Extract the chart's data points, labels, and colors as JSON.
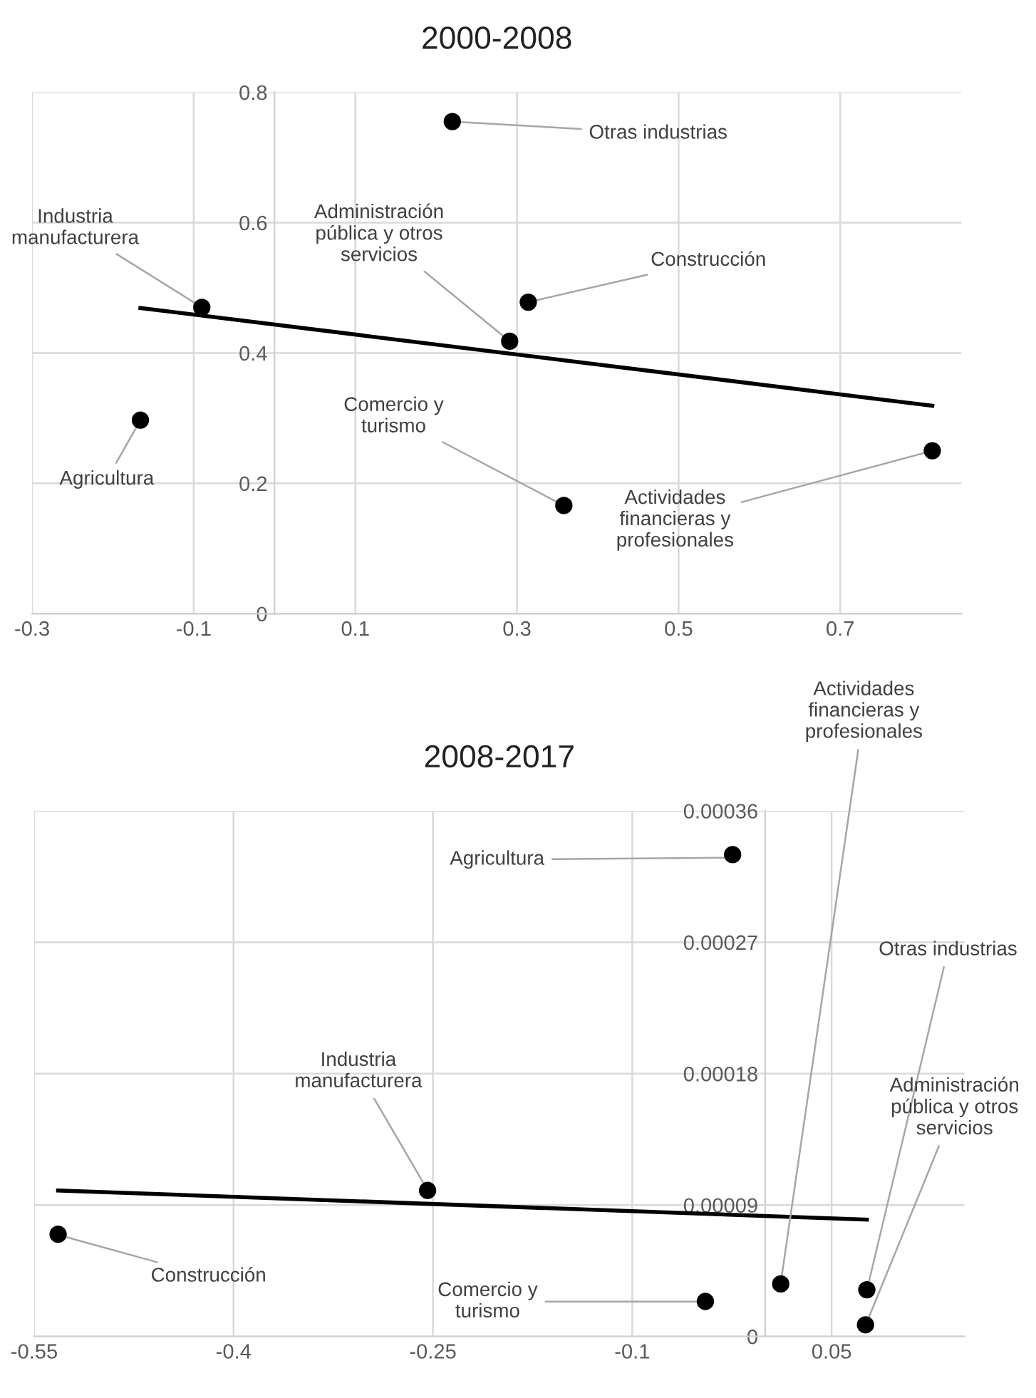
{
  "chart_data": [
    {
      "type": "scatter",
      "title": "2000-2008",
      "series": [
        {
          "color": "#000000",
          "marker": "circle",
          "x": [
            0.22,
            -0.09,
            0.314,
            0.291,
            -0.166,
            0.358,
            0.814
          ],
          "values": [
            0.755,
            0.47,
            0.478,
            0.418,
            0.297,
            0.166,
            0.25
          ]
        },
        {
          "type": "line",
          "marker": "none",
          "line_style": "solid",
          "color": "#000000",
          "x": [
            -0.166,
            0.814
          ],
          "values": [
            0.469,
            0.319
          ]
        }
      ],
      "xlim": [
        -0.3,
        0.85
      ],
      "xticks": [
        -0.3,
        -0.1,
        0.1,
        0.3,
        0.5,
        0.7
      ],
      "ylim": [
        0,
        0.8
      ],
      "yticks": [
        0,
        0.2,
        0.4,
        0.6,
        0.8
      ],
      "grid": true,
      "annotations": [
        {
          "text": "Otras industrias",
          "x": 0.22,
          "y": 0.755
        },
        {
          "text": "Industria\nmanufacturera",
          "x": -0.09,
          "y": 0.47
        },
        {
          "text": "Construcción",
          "x": 0.314,
          "y": 0.478
        },
        {
          "text": "Administración\npública y otros\nservicios",
          "x": 0.291,
          "y": 0.418
        },
        {
          "text": "Agricultura",
          "x": -0.166,
          "y": 0.297
        },
        {
          "text": "Comercio y\nturismo",
          "x": 0.358,
          "y": 0.166
        },
        {
          "text": "Actividades\nfinancieras y\nprofesionales",
          "x": 0.814,
          "y": 0.25
        }
      ]
    },
    {
      "type": "scatter",
      "title": "2008-2017",
      "series": [
        {
          "color": "#000000",
          "marker": "circle",
          "x": [
            -0.0245,
            0.0117,
            0.0765,
            0.0755,
            -0.045,
            -0.254,
            -0.532
          ],
          "values": [
            0.00033,
            3.6e-05,
            3.2e-05,
            8e-06,
            2.4e-05,
            0.0001,
            7e-05
          ]
        },
        {
          "type": "line",
          "marker": "none",
          "line_style": "solid",
          "color": "#000000",
          "x": [
            -0.532,
            0.0765
          ],
          "values": [
            0.0001,
            8e-05
          ]
        }
      ],
      "xlim": [
        -0.55,
        0.15
      ],
      "xticks": [
        -0.55,
        -0.4,
        -0.25,
        -0.1,
        0.05
      ],
      "ylim": [
        0,
        0.00036
      ],
      "yticks": [
        0,
        {
          "value": 9e-05,
          "label": "0.00009"
        },
        {
          "value": 0.00018,
          "label": "0.00018"
        },
        {
          "value": 0.00027,
          "label": "0.00027"
        },
        {
          "value": 0.00036,
          "label": "0.00036"
        }
      ],
      "grid": true,
      "annotations": [
        {
          "text": "Agricultura",
          "x": -0.0245,
          "y": 0.000328
        },
        {
          "text": "Actividades\nfinancieras y\nprofesionales",
          "x": 0.0117,
          "y": 3.64e-05
        },
        {
          "text": "Otras industrias",
          "x": 0.0765,
          "y": 3.15e-05
        },
        {
          "text": "Administración\npública y otros\nservicios",
          "x": 0.0755,
          "y": 7.5e-06
        },
        {
          "text": "Comercio y\nturismo",
          "x": -0.045,
          "y": 2.39e-05
        },
        {
          "text": "Industria\nmanufacturera",
          "x": -0.254,
          "y": 0.0001002
        },
        {
          "text": "Construcción",
          "x": -0.532,
          "y": 6.96e-05
        }
      ]
    }
  ]
}
